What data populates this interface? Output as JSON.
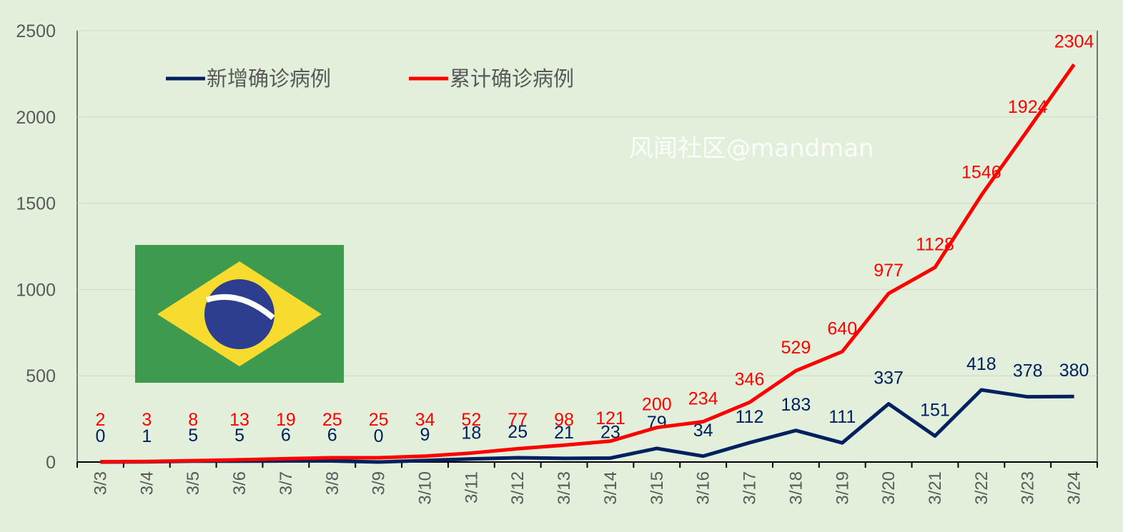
{
  "chart_data": {
    "type": "line",
    "title": "",
    "categories": [
      "3/3",
      "3/4",
      "3/5",
      "3/6",
      "3/7",
      "3/8",
      "3/9",
      "3/10",
      "3/11",
      "3/12",
      "3/13",
      "3/14",
      "3/15",
      "3/16",
      "3/17",
      "3/18",
      "3/19",
      "3/20",
      "3/21",
      "3/22",
      "3/23",
      "3/24"
    ],
    "series": [
      {
        "name": "新增确诊病例",
        "color": "#002060",
        "values": [
          0,
          1,
          5,
          5,
          6,
          6,
          0,
          9,
          18,
          25,
          21,
          23,
          79,
          34,
          112,
          183,
          111,
          337,
          151,
          418,
          378,
          380
        ]
      },
      {
        "name": "累计确诊病例",
        "color": "#ff0000",
        "values": [
          2,
          3,
          8,
          13,
          19,
          25,
          25,
          34,
          52,
          77,
          98,
          121,
          200,
          234,
          346,
          529,
          640,
          977,
          1128,
          1546,
          1924,
          2304
        ]
      }
    ],
    "ylim": [
      0,
      2500
    ],
    "yticks": [
      "0",
      "500",
      "1000",
      "1500",
      "2000",
      "2500"
    ],
    "grid": true,
    "legend": "top-left",
    "xlabel": "",
    "ylabel": ""
  },
  "watermark": "风闻社区@mandman"
}
